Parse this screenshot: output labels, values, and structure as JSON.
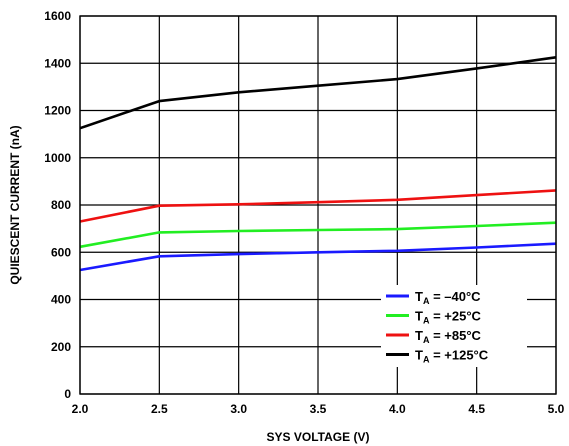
{
  "chart_data": {
    "type": "line",
    "xlabel": "SYS VOLTAGE (V)",
    "ylabel": "QUIESCENT CURRENT (nA)",
    "xlim": [
      2.0,
      5.0
    ],
    "ylim": [
      0,
      1600
    ],
    "x_ticks": [
      "2.0",
      "2.5",
      "3.0",
      "3.5",
      "4.0",
      "4.5",
      "5.0"
    ],
    "y_ticks": [
      "0",
      "200",
      "400",
      "600",
      "800",
      "1000",
      "1200",
      "1400",
      "1600"
    ],
    "grid": true,
    "legend_position": "bottom-right",
    "series": [
      {
        "name_main": "T",
        "name_sub": "A",
        "name_rest": " = –40°C",
        "color": "#1a1aff",
        "x": [
          2.0,
          2.5,
          3.0,
          3.5,
          4.0,
          4.5,
          5.0
        ],
        "y": [
          525,
          583,
          592,
          600,
          606,
          620,
          636
        ]
      },
      {
        "name_main": "T",
        "name_sub": "A",
        "name_rest": " = +25°C",
        "color": "#22ee22",
        "x": [
          2.0,
          2.5,
          3.0,
          3.5,
          4.0,
          4.5,
          5.0
        ],
        "y": [
          623,
          684,
          690,
          694,
          698,
          711,
          725
        ]
      },
      {
        "name_main": "T",
        "name_sub": "A",
        "name_rest": " = +85°C",
        "color": "#ee1111",
        "x": [
          2.0,
          2.5,
          3.0,
          3.5,
          4.0,
          4.5,
          5.0
        ],
        "y": [
          730,
          797,
          803,
          812,
          822,
          842,
          862
        ]
      },
      {
        "name_main": "T",
        "name_sub": "A",
        "name_rest": " = +125°C",
        "color": "#000000",
        "x": [
          2.0,
          2.5,
          3.0,
          3.5,
          4.0,
          4.5,
          5.0
        ],
        "y": [
          1125,
          1240,
          1277,
          1305,
          1333,
          1378,
          1425
        ]
      }
    ]
  }
}
